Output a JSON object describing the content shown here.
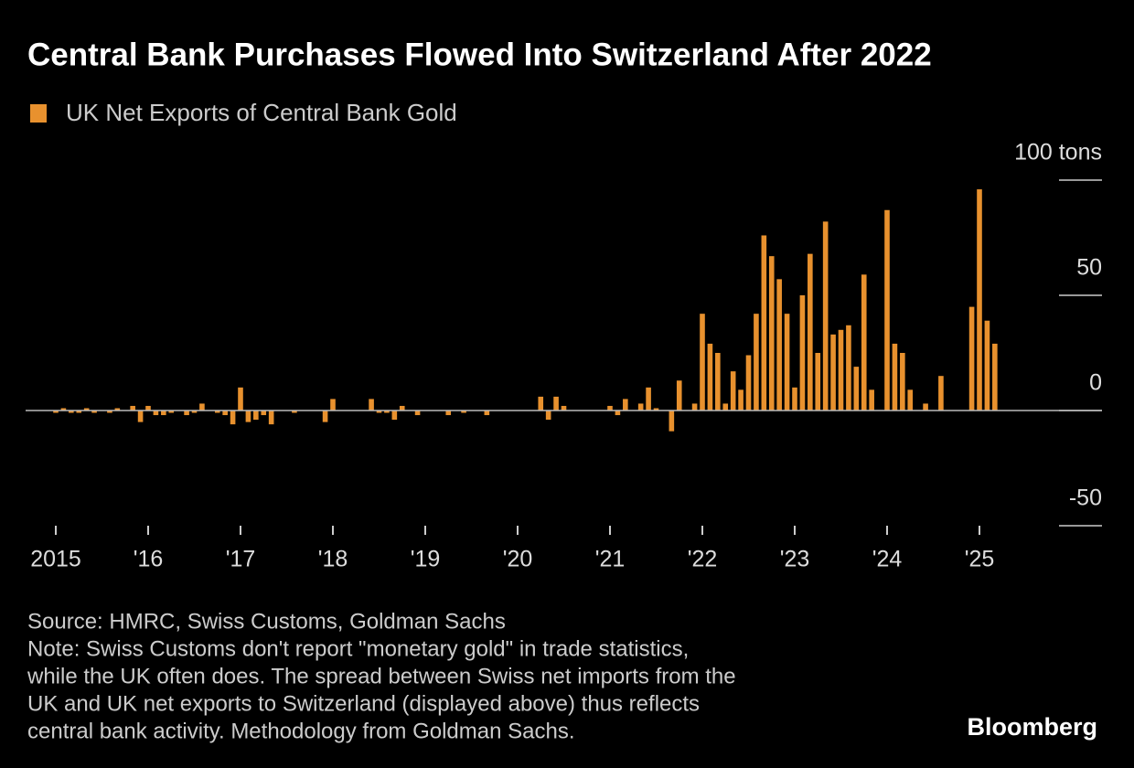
{
  "chart_data": {
    "type": "bar",
    "title": "Central Bank Purchases Flowed Into Switzerland After 2022",
    "legend": [
      {
        "name": "UK Net Exports of Central Bank Gold",
        "color": "#e8912e"
      }
    ],
    "categories": [
      "2015",
      null,
      null,
      null,
      null,
      null,
      null,
      null,
      null,
      null,
      null,
      null,
      "'16",
      null,
      null,
      null,
      null,
      null,
      null,
      null,
      null,
      null,
      null,
      null,
      "'17",
      null,
      null,
      null,
      null,
      null,
      null,
      null,
      null,
      null,
      null,
      null,
      "'18",
      null,
      null,
      null,
      null,
      null,
      null,
      null,
      null,
      null,
      null,
      null,
      "'19",
      null,
      null,
      null,
      null,
      null,
      null,
      null,
      null,
      null,
      null,
      null,
      "'20",
      null,
      null,
      null,
      null,
      null,
      null,
      null,
      null,
      null,
      null,
      null,
      "'21",
      null,
      null,
      null,
      null,
      null,
      null,
      null,
      null,
      null,
      null,
      null,
      "'22",
      null,
      null,
      null,
      null,
      null,
      null,
      null,
      null,
      null,
      null,
      null,
      "'23",
      null,
      null,
      null,
      null,
      null,
      null,
      null,
      null,
      null,
      null,
      null,
      "'24",
      null,
      null,
      null,
      null,
      null,
      null,
      null,
      null,
      null,
      null,
      null,
      "'25",
      null,
      null
    ],
    "values": [
      -1,
      1,
      -1,
      -1,
      1,
      -1,
      0,
      -1,
      1,
      0,
      2,
      -5,
      2,
      -2,
      -2,
      -1,
      0,
      -2,
      -1,
      3,
      0,
      -1,
      -2,
      -6,
      10,
      -5,
      -4,
      -2,
      -6,
      0,
      0,
      -1,
      0,
      0,
      0,
      -5,
      5,
      0,
      0,
      0,
      0,
      5,
      -1,
      -1,
      -4,
      2,
      0,
      -2,
      0,
      0,
      0,
      -2,
      0,
      -1,
      0,
      0,
      -2,
      0,
      0,
      0,
      0,
      0,
      0,
      6,
      -4,
      6,
      2,
      0,
      0,
      0,
      0,
      0,
      2,
      -2,
      5,
      0,
      3,
      10,
      1,
      0,
      -9,
      13,
      0,
      3,
      42,
      29,
      25,
      3,
      17,
      9,
      24,
      42,
      76,
      67,
      57,
      42,
      10,
      50,
      68,
      25,
      82,
      33,
      35,
      37,
      19,
      59,
      9,
      0,
      87,
      29,
      25,
      9,
      0,
      3,
      0,
      15,
      0,
      0,
      0,
      45,
      96,
      39,
      29
    ],
    "color": "#e8912e",
    "ylim": [
      -50,
      100
    ],
    "yticks": [
      -50,
      0,
      50,
      {
        "value": 100,
        "label": "100 tons"
      }
    ],
    "source": "Source: HMRC, Swiss Customs, Goldman Sachs",
    "note": [
      "Note: Swiss Customs don't report \"monetary gold\" in trade statistics,",
      "while the UK often does. The spread between Swiss net imports from the",
      "UK and UK net exports to Switzerland (displayed above) thus reflects",
      "central bank activity. Methodology from Goldman Sachs."
    ],
    "brand": "Bloomberg"
  }
}
